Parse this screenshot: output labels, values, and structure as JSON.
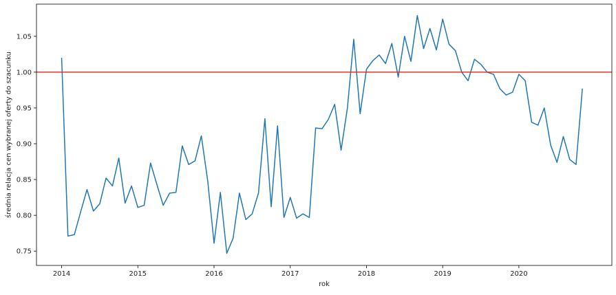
{
  "chart_data": {
    "type": "line",
    "title": "",
    "xlabel": "rok",
    "ylabel": "średnia relacja cen wybranej oferty do szacunku",
    "xlim": [
      2013.67,
      2021.22
    ],
    "ylim": [
      0.73,
      1.095
    ],
    "grid": false,
    "x_ticks": [
      "2014",
      "2015",
      "2016",
      "2017",
      "2018",
      "2019",
      "2020"
    ],
    "y_ticks": [
      "0.75",
      "0.80",
      "0.85",
      "0.90",
      "0.95",
      "1.00",
      "1.05"
    ],
    "reference_line": {
      "y": 1.0,
      "color": "#e8332b"
    },
    "series": [
      {
        "color": "#1f77b4",
        "x": [
          2014.0,
          2014.083,
          2014.167,
          2014.25,
          2014.333,
          2014.417,
          2014.5,
          2014.583,
          2014.667,
          2014.75,
          2014.833,
          2014.917,
          2015.0,
          2015.083,
          2015.167,
          2015.25,
          2015.333,
          2015.417,
          2015.5,
          2015.583,
          2015.667,
          2015.75,
          2015.833,
          2015.917,
          2016.0,
          2016.083,
          2016.167,
          2016.25,
          2016.333,
          2016.417,
          2016.5,
          2016.583,
          2016.667,
          2016.75,
          2016.833,
          2016.917,
          2017.0,
          2017.083,
          2017.167,
          2017.25,
          2017.333,
          2017.417,
          2017.5,
          2017.583,
          2017.667,
          2017.75,
          2017.833,
          2017.917,
          2018.0,
          2018.083,
          2018.167,
          2018.25,
          2018.333,
          2018.417,
          2018.5,
          2018.583,
          2018.667,
          2018.75,
          2018.833,
          2018.917,
          2019.0,
          2019.083,
          2019.167,
          2019.25,
          2019.333,
          2019.417,
          2019.5,
          2019.583,
          2019.667,
          2019.75,
          2019.833,
          2019.917,
          2020.0,
          2020.083,
          2020.167,
          2020.25,
          2020.333,
          2020.417,
          2020.5,
          2020.583,
          2020.667,
          2020.75,
          2020.833
        ],
        "y": [
          1.02,
          0.771,
          0.773,
          0.805,
          0.836,
          0.806,
          0.816,
          0.852,
          0.841,
          0.88,
          0.817,
          0.841,
          0.811,
          0.814,
          0.873,
          0.843,
          0.814,
          0.831,
          0.832,
          0.897,
          0.871,
          0.876,
          0.911,
          0.848,
          0.761,
          0.832,
          0.747,
          0.768,
          0.831,
          0.794,
          0.802,
          0.831,
          0.935,
          0.812,
          0.925,
          0.797,
          0.825,
          0.796,
          0.802,
          0.797,
          0.922,
          0.921,
          0.934,
          0.955,
          0.891,
          0.95,
          1.046,
          0.942,
          1.004,
          1.016,
          1.024,
          1.012,
          1.04,
          0.993,
          1.05,
          1.015,
          1.079,
          1.033,
          1.061,
          1.031,
          1.074,
          1.039,
          1.03,
          1.0,
          0.988,
          1.018,
          1.011,
          1.0,
          0.997,
          0.977,
          0.968,
          0.972,
          0.997,
          0.988,
          0.93,
          0.926,
          0.95,
          0.898,
          0.874,
          0.91,
          0.878,
          0.871,
          0.977
        ]
      }
    ]
  }
}
